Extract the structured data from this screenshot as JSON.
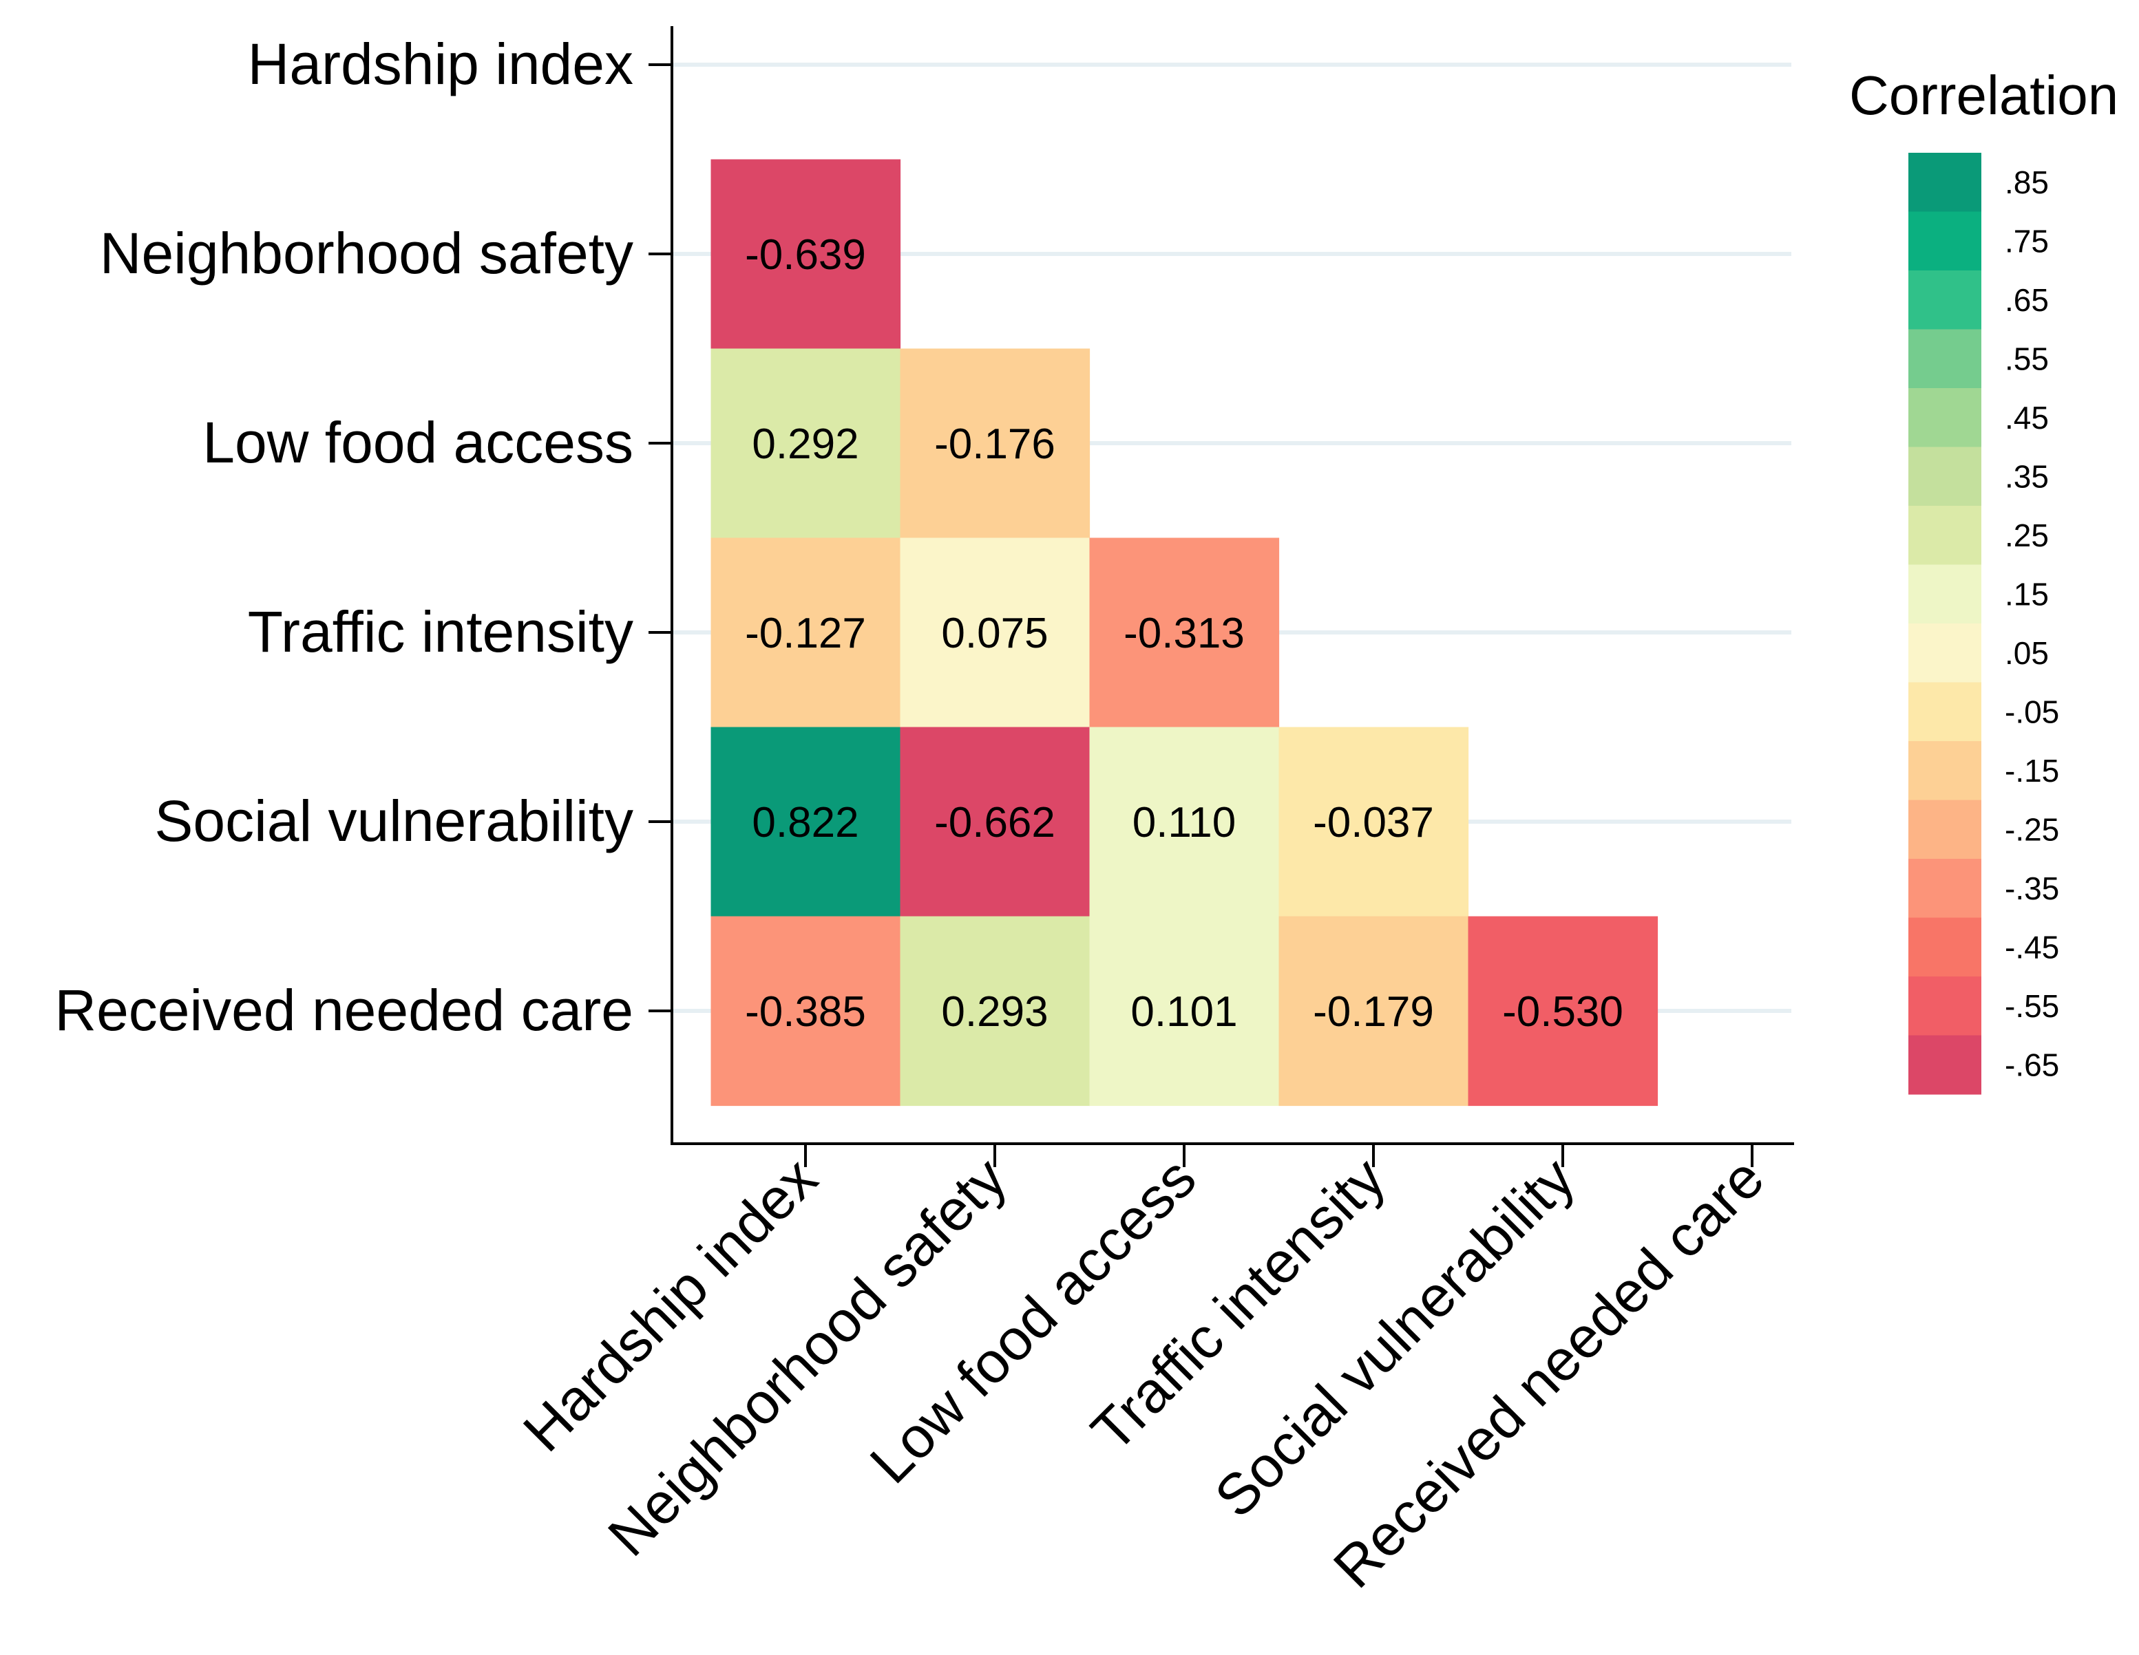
{
  "chart_data": {
    "type": "heatmap",
    "variables": [
      "Hardship index",
      "Neighborhood safety",
      "Low food access",
      "Traffic intensity",
      "Social vulnerability",
      "Received needed care"
    ],
    "cells": [
      {
        "row": "Neighborhood safety",
        "col": "Hardship index",
        "value": -0.639,
        "label": "-0.639"
      },
      {
        "row": "Low food access",
        "col": "Hardship index",
        "value": 0.292,
        "label": "0.292"
      },
      {
        "row": "Low food access",
        "col": "Neighborhood safety",
        "value": -0.176,
        "label": "-0.176"
      },
      {
        "row": "Traffic intensity",
        "col": "Hardship index",
        "value": -0.127,
        "label": "-0.127"
      },
      {
        "row": "Traffic intensity",
        "col": "Neighborhood safety",
        "value": 0.075,
        "label": "0.075"
      },
      {
        "row": "Traffic intensity",
        "col": "Low food access",
        "value": -0.313,
        "label": "-0.313"
      },
      {
        "row": "Social vulnerability",
        "col": "Hardship index",
        "value": 0.822,
        "label": "0.822"
      },
      {
        "row": "Social vulnerability",
        "col": "Neighborhood safety",
        "value": -0.662,
        "label": "-0.662"
      },
      {
        "row": "Social vulnerability",
        "col": "Low food access",
        "value": 0.11,
        "label": "0.110"
      },
      {
        "row": "Social vulnerability",
        "col": "Traffic intensity",
        "value": -0.037,
        "label": "-0.037"
      },
      {
        "row": "Received needed care",
        "col": "Hardship index",
        "value": -0.385,
        "label": "-0.385"
      },
      {
        "row": "Received needed care",
        "col": "Neighborhood safety",
        "value": 0.293,
        "label": "0.293"
      },
      {
        "row": "Received needed care",
        "col": "Low food access",
        "value": 0.101,
        "label": "0.101"
      },
      {
        "row": "Received needed care",
        "col": "Traffic intensity",
        "value": -0.179,
        "label": "-0.179"
      },
      {
        "row": "Received needed care",
        "col": "Social vulnerability",
        "value": -0.53,
        "label": "-0.530"
      }
    ],
    "legend": {
      "title": "Correlation",
      "placement": "right",
      "bins": [
        {
          "label": ".85",
          "color": "#0a9a78"
        },
        {
          "label": ".75",
          "color": "#0bb080"
        },
        {
          "label": ".65",
          "color": "#30c189"
        },
        {
          "label": ".55",
          "color": "#75cc8e"
        },
        {
          "label": ".45",
          "color": "#a0d793"
        },
        {
          "label": ".35",
          "color": "#c4e09d"
        },
        {
          "label": ".25",
          "color": "#dbeaa8"
        },
        {
          "label": ".15",
          "color": "#eef6c6"
        },
        {
          "label": ".05",
          "color": "#fbf5c9"
        },
        {
          "label": "-.05",
          "color": "#fde8a9"
        },
        {
          "label": "-.15",
          "color": "#fdd095"
        },
        {
          "label": "-.25",
          "color": "#fdb486"
        },
        {
          "label": "-.35",
          "color": "#fc9479"
        },
        {
          "label": "-.45",
          "color": "#f87567"
        },
        {
          "label": "-.55",
          "color": "#f15e66"
        },
        {
          "label": "-.65",
          "color": "#dc4767"
        }
      ]
    }
  }
}
